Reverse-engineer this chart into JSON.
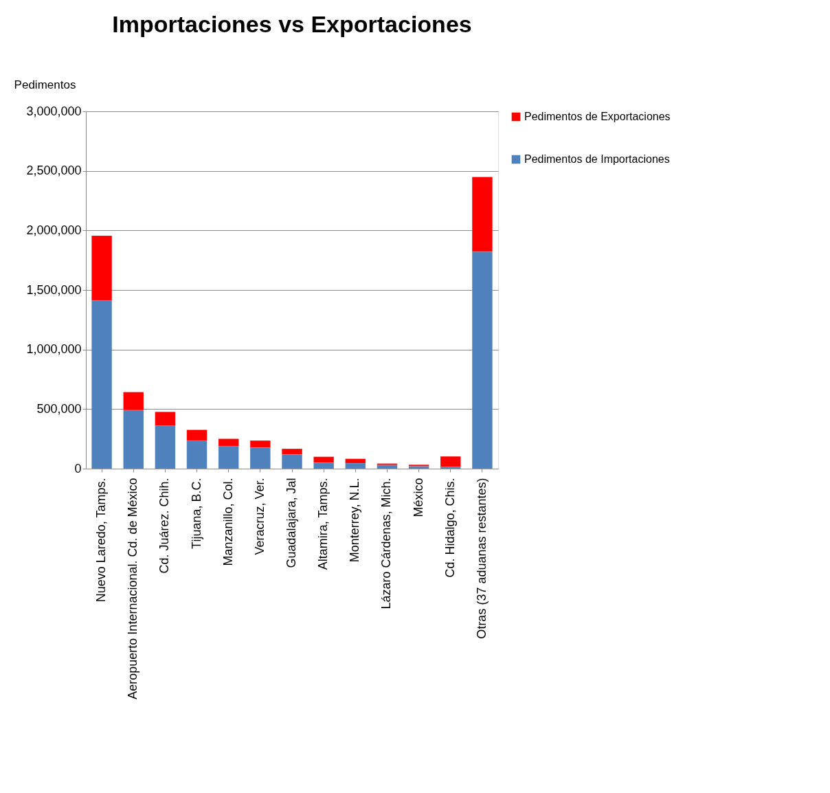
{
  "chart_data": {
    "type": "bar",
    "stacked": true,
    "title": "Importaciones vs Exportaciones",
    "ylabel": "Pedimentos",
    "categories": [
      "Nuevo Laredo, Tamps.",
      "Aeropuerto Internacional. Cd. de México",
      "Cd. Juárez. Chih.",
      "Tijuana, B.C.",
      "Manzanillo, Col.",
      "Veracruz, Ver.",
      "Guadalajara, Jal",
      "Altamira, Tamps.",
      "Monterrey, N.L.",
      "Lázaro Cárdenas, Mich.",
      "México",
      "Cd. Hidalgo, Chis.",
      "Otras (37 aduanas restantes)"
    ],
    "series": [
      {
        "name": "Pedimentos de Importaciones",
        "color": "#4f81bd",
        "values": [
          1413000,
          491000,
          360000,
          236000,
          190000,
          177000,
          119000,
          50000,
          46000,
          31000,
          21000,
          14000,
          1822000
        ]
      },
      {
        "name": "Pedimentos de Exportaciones",
        "color": "#ff0000",
        "values": [
          543000,
          152000,
          117000,
          90000,
          61000,
          59000,
          48000,
          50000,
          37000,
          12000,
          12000,
          89000,
          627000
        ]
      }
    ],
    "ylim": [
      0,
      3000000
    ],
    "yticks": [
      0,
      {
        "value": 500000,
        "label": "500,000"
      },
      {
        "value": 1000000,
        "label": "1,000,000"
      },
      {
        "value": 1500000,
        "label": "1,500,000"
      },
      {
        "value": 2000000,
        "label": "2,000,000"
      },
      {
        "value": 2500000,
        "label": "2,500,000"
      },
      {
        "value": 3000000,
        "label": "3,000,000"
      }
    ],
    "grid": "y",
    "legend": "right"
  }
}
